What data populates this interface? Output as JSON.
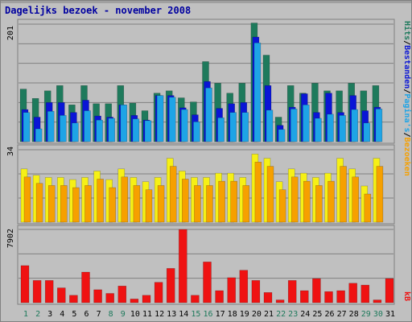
{
  "chart_data": [
    {
      "type": "bar",
      "title": "Dagelijks bezoek - november 2008",
      "panel": "hits-files-pages-visits",
      "ytick": "201",
      "legend": [
        "Hits",
        "Bestanden",
        "Pagina's",
        "Bezoeken"
      ],
      "legend_separator": "/",
      "legend_placement": "right-vertical",
      "categories": [
        "1",
        "2",
        "3",
        "4",
        "5",
        "6",
        "7",
        "8",
        "9",
        "10",
        "11",
        "12",
        "13",
        "14",
        "15",
        "16",
        "17",
        "18",
        "19",
        "20",
        "21",
        "22",
        "23",
        "24",
        "25",
        "26",
        "27",
        "28",
        "29",
        "30",
        "31"
      ],
      "series": [
        {
          "name": "Hits",
          "color": "#1e7a5c",
          "values": [
            90,
            74,
            87,
            96,
            63,
            96,
            65,
            65,
            96,
            66,
            53,
            83,
            87,
            75,
            68,
            137,
            100,
            83,
            100,
            203,
            148,
            42,
            96,
            83,
            100,
            87,
            87,
            100,
            87,
            96,
            0
          ]
        },
        {
          "name": "Bestanden",
          "color": "#0a15d6",
          "values": [
            55,
            42,
            67,
            67,
            50,
            71,
            44,
            42,
            63,
            45,
            37,
            79,
            79,
            58,
            46,
            103,
            57,
            65,
            67,
            179,
            96,
            28,
            59,
            82,
            50,
            83,
            50,
            79,
            53,
            59,
            0
          ]
        },
        {
          "name": "Pagina's",
          "color": "#1ea4e6",
          "values": [
            50,
            22,
            52,
            45,
            32,
            53,
            37,
            40,
            63,
            39,
            36,
            79,
            76,
            55,
            34,
            92,
            41,
            50,
            50,
            169,
            54,
            21,
            56,
            63,
            40,
            47,
            45,
            55,
            32,
            56,
            0
          ]
        }
      ]
    },
    {
      "type": "bar",
      "panel": "visits",
      "ytick": "34",
      "series": [
        {
          "name": "Bezoeken",
          "color": "#f6f016",
          "values": [
            25,
            22,
            21,
            21,
            20,
            21,
            24,
            20,
            25,
            21,
            19,
            21,
            30,
            24,
            21,
            21,
            23,
            23,
            21,
            32,
            30,
            19,
            25,
            23,
            21,
            23,
            30,
            25,
            17,
            30,
            0
          ]
        }
      ]
    },
    {
      "type": "bar",
      "panel": "kb",
      "ytick": "7902",
      "legend": [
        "kB"
      ],
      "series": [
        {
          "name": "kB",
          "color": "#ef1212",
          "values": [
            4000,
            2400,
            2400,
            1600,
            800,
            3300,
            1400,
            1000,
            1800,
            400,
            800,
            2200,
            3700,
            7900,
            800,
            4400,
            1300,
            2700,
            3500,
            2400,
            1100,
            300,
            2400,
            1300,
            2600,
            1200,
            1300,
            2100,
            1900,
            300,
            2600
          ]
        }
      ]
    }
  ],
  "colors": {
    "background": "#c0c0c0",
    "frame": "#808080",
    "grid": "#808080",
    "title": "#0000a0",
    "xlabel": "#000000",
    "weekend_xlabel": "#1e7a5c",
    "visits_legend": "#f6a000"
  }
}
